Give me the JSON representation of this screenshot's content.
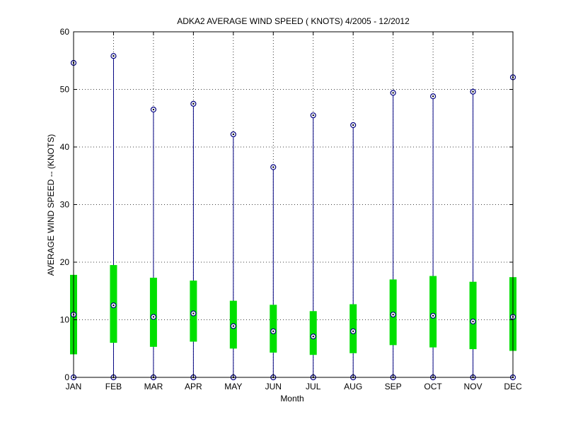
{
  "chart_data": {
    "type": "box",
    "title": "ADKA2  AVERAGE WIND SPEED ( KNOTS) 4/2005 - 12/2012",
    "xlabel": "Month",
    "ylabel": "AVERAGE WIND SPEED -- (KNOTS)",
    "categories": [
      "JAN",
      "FEB",
      "MAR",
      "APR",
      "MAY",
      "JUN",
      "JUL",
      "AUG",
      "SEP",
      "OCT",
      "NOV",
      "DEC"
    ],
    "ylim": [
      0,
      60
    ],
    "yticks": [
      0,
      10,
      20,
      30,
      40,
      50,
      60
    ],
    "grid": true,
    "series": [
      {
        "min": [
          0,
          0,
          0,
          0,
          0,
          0,
          0,
          0,
          0,
          0,
          0,
          0
        ],
        "q1": [
          4.0,
          6.0,
          5.3,
          6.2,
          5.0,
          4.3,
          3.9,
          4.2,
          5.6,
          5.2,
          4.9,
          4.6
        ],
        "median": [
          10.9,
          12.5,
          10.5,
          11.1,
          8.9,
          8.0,
          7.1,
          8.0,
          10.9,
          10.7,
          9.7,
          10.5
        ],
        "q3": [
          17.8,
          19.5,
          17.3,
          16.8,
          13.3,
          12.6,
          11.5,
          12.7,
          17.0,
          17.6,
          16.6,
          17.4
        ],
        "max": [
          54.6,
          55.8,
          46.5,
          47.5,
          42.2,
          36.5,
          45.5,
          43.8,
          49.4,
          48.8,
          49.6,
          52.1
        ]
      }
    ]
  },
  "colors": {
    "whisker": "#000080",
    "box": "#00e000",
    "marker": "#000080",
    "marker_dot": "#000000",
    "axis": "#000000"
  }
}
